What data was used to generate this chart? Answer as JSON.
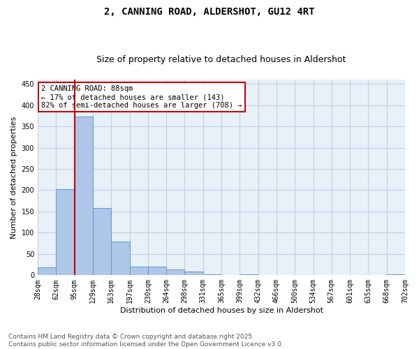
{
  "title_line1": "2, CANNING ROAD, ALDERSHOT, GU12 4RT",
  "title_line2": "Size of property relative to detached houses in Aldershot",
  "xlabel": "Distribution of detached houses by size in Aldershot",
  "ylabel": "Number of detached properties",
  "bar_values": [
    18,
    202,
    373,
    158,
    79,
    21,
    21,
    13,
    8,
    3,
    0,
    2,
    0,
    0,
    0,
    0,
    0,
    0,
    0,
    3
  ],
  "bin_labels": [
    "28sqm",
    "62sqm",
    "95sqm",
    "129sqm",
    "163sqm",
    "197sqm",
    "230sqm",
    "264sqm",
    "298sqm",
    "331sqm",
    "365sqm",
    "399sqm",
    "432sqm",
    "466sqm",
    "500sqm",
    "534sqm",
    "567sqm",
    "601sqm",
    "635sqm",
    "668sqm",
    "702sqm"
  ],
  "bar_color": "#aec6e8",
  "bar_edge_color": "#5b9bd5",
  "grid_color": "#c0d0e8",
  "background_color": "#e8f0f8",
  "vline_color": "#cc0000",
  "annotation_text": "2 CANNING ROAD: 88sqm\n← 17% of detached houses are smaller (143)\n82% of semi-detached houses are larger (708) →",
  "annotation_box_color": "white",
  "annotation_box_edge": "#cc0000",
  "ylim": [
    0,
    460
  ],
  "yticks": [
    0,
    50,
    100,
    150,
    200,
    250,
    300,
    350,
    400,
    450
  ],
  "footnote": "Contains HM Land Registry data © Crown copyright and database right 2025.\nContains public sector information licensed under the Open Government Licence v3.0.",
  "title_fontsize": 10,
  "subtitle_fontsize": 9,
  "axis_fontsize": 8,
  "tick_fontsize": 7,
  "annotation_fontsize": 7.5,
  "footnote_fontsize": 6.5
}
